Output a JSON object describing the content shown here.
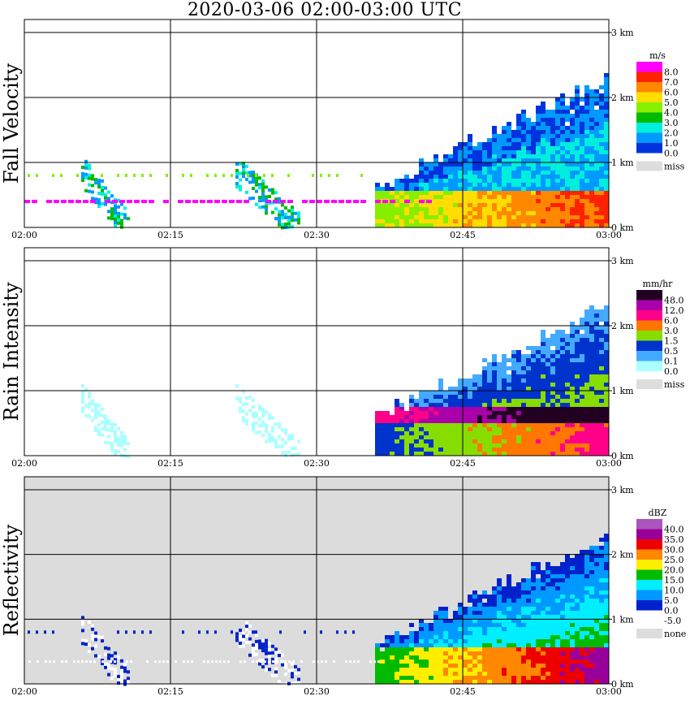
{
  "title": "2020-03-06   02:00-03:00 UTC",
  "chart_data": [
    {
      "type": "heatmap",
      "panel_label": "Fall Velocity",
      "unit": "m/s",
      "x_ticks": [
        "02:00",
        "02:15",
        "02:30",
        "02:45",
        "03:00"
      ],
      "y_ticks": [
        "0 km",
        "1 km",
        "2 km",
        "3 km"
      ],
      "ylim": [
        0,
        3
      ],
      "legend": [
        {
          "label": "8.0",
          "color": "#ff00ff"
        },
        {
          "label": "7.0",
          "color": "#ff2200"
        },
        {
          "label": "6.0",
          "color": "#ff8800"
        },
        {
          "label": "5.0",
          "color": "#ffdd00"
        },
        {
          "label": "4.0",
          "color": "#88ee00"
        },
        {
          "label": "3.0",
          "color": "#00bb00"
        },
        {
          "label": "2.0",
          "color": "#00eedd"
        },
        {
          "label": "1.0",
          "color": "#0099ff"
        },
        {
          "label": "0.0",
          "color": "#0033dd"
        }
      ],
      "missing_label": "miss",
      "missing_color": "#dddddd",
      "grid": true
    },
    {
      "type": "heatmap",
      "panel_label": "Rain Intensity",
      "unit": "mm/hr",
      "x_ticks": [
        "02:00",
        "02:15",
        "02:30",
        "02:45",
        "03:00"
      ],
      "y_ticks": [
        "0 km",
        "1 km",
        "2 km",
        "3 km"
      ],
      "ylim": [
        0,
        3
      ],
      "legend": [
        {
          "label": "48.0",
          "color": "#220022"
        },
        {
          "label": "12.0",
          "color": "#aa00aa"
        },
        {
          "label": "6.0",
          "color": "#ff0088"
        },
        {
          "label": "3.0",
          "color": "#ff7700"
        },
        {
          "label": "1.5",
          "color": "#88dd00"
        },
        {
          "label": "0.5",
          "color": "#0033cc"
        },
        {
          "label": "0.1",
          "color": "#44aaff"
        },
        {
          "label": "0.0",
          "color": "#aaffff"
        }
      ],
      "missing_label": "miss",
      "missing_color": "#dddddd",
      "grid": true
    },
    {
      "type": "heatmap",
      "panel_label": "Reflectivity",
      "unit": "dBZ",
      "x_ticks": [
        "02:00",
        "02:15",
        "02:30",
        "02:45",
        "03:00"
      ],
      "y_ticks": [
        "0 km",
        "1 km",
        "2 km",
        "3 km"
      ],
      "ylim": [
        0,
        3
      ],
      "legend": [
        {
          "label": "40.0",
          "color": "#aa55bb"
        },
        {
          "label": "35.0",
          "color": "#990099"
        },
        {
          "label": "30.0",
          "color": "#ee0000"
        },
        {
          "label": "25.0",
          "color": "#ff8800"
        },
        {
          "label": "20.0",
          "color": "#ffee00"
        },
        {
          "label": "15.0",
          "color": "#00bb00"
        },
        {
          "label": "10.0",
          "color": "#00eeff"
        },
        {
          "label": "5.0",
          "color": "#0099ff"
        },
        {
          "label": "0.0",
          "color": "#0022cc"
        },
        {
          "label": "-5.0",
          "color": "#ffffff"
        }
      ],
      "missing_label": "none",
      "missing_color": "#dddddd",
      "grid": true
    }
  ]
}
